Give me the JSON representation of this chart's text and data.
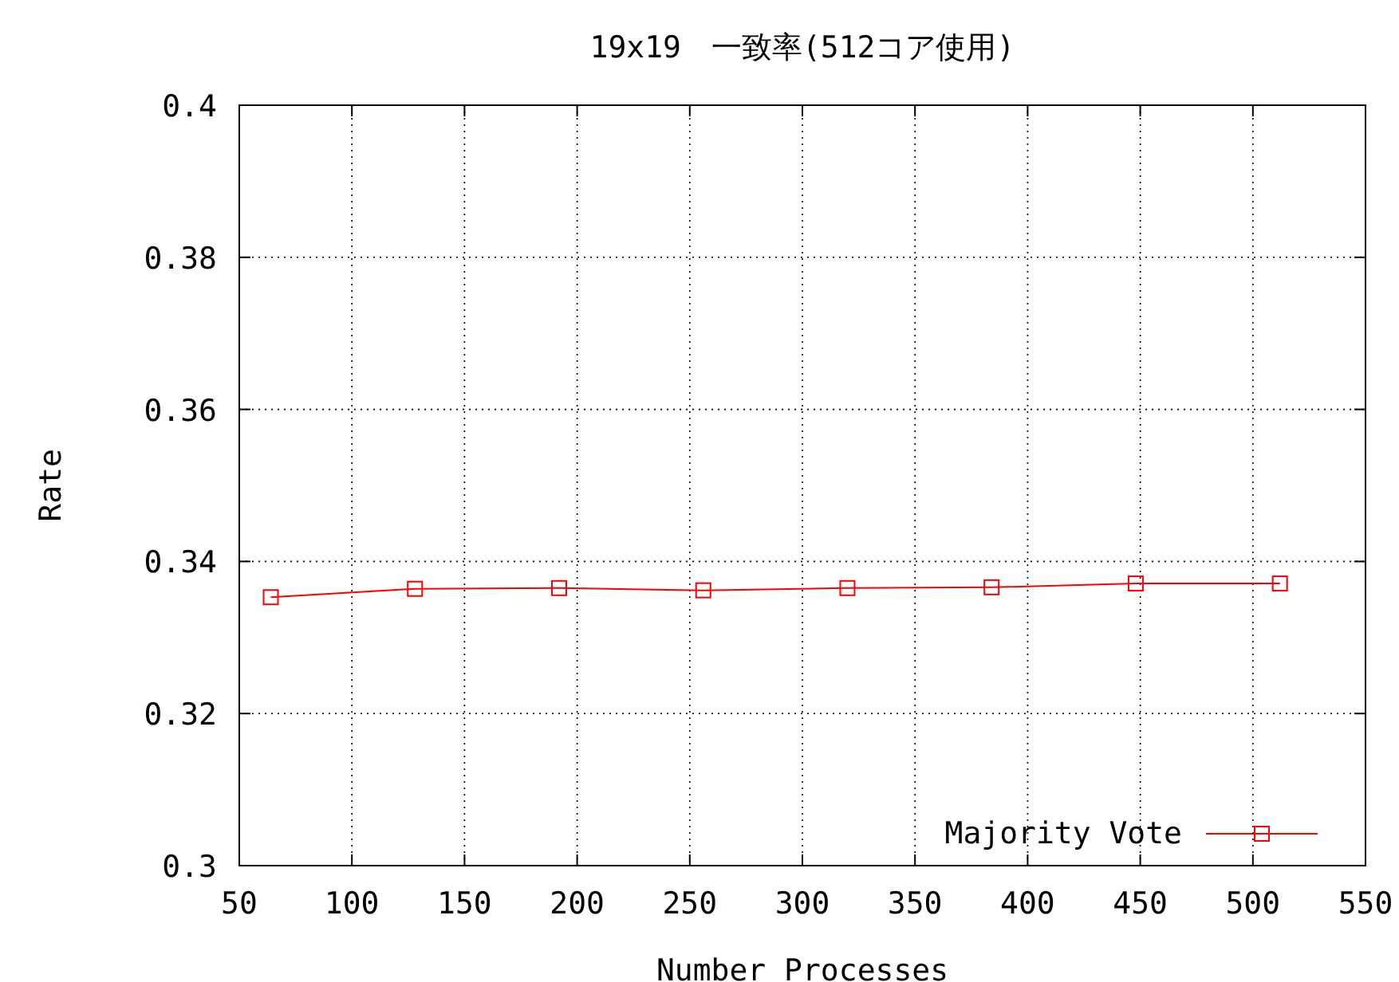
{
  "chart_data": {
    "type": "line",
    "title": "19x19　一致率(512コア使用)",
    "xlabel": "Number Processes",
    "ylabel": "Rate",
    "x": [
      64,
      128,
      192,
      256,
      320,
      384,
      448,
      512
    ],
    "series": [
      {
        "name": "Majority Vote",
        "color": "#ff0000",
        "values": [
          0.3353,
          0.3364,
          0.3365,
          0.3362,
          0.3365,
          0.3366,
          0.3371,
          0.3371
        ]
      }
    ],
    "xlim": [
      50,
      550
    ],
    "xticks": [
      50,
      100,
      150,
      200,
      250,
      300,
      350,
      400,
      450,
      500,
      550
    ],
    "ylim": [
      0.3,
      0.4
    ],
    "yticks": [
      {
        "value": 0.3,
        "label": "0.3"
      },
      0.32,
      0.34,
      0.36,
      0.38,
      {
        "value": 0.4,
        "label": "0.4"
      }
    ],
    "grid": true,
    "legend": "bottom right",
    "marker": "square",
    "line_style": "solid"
  }
}
